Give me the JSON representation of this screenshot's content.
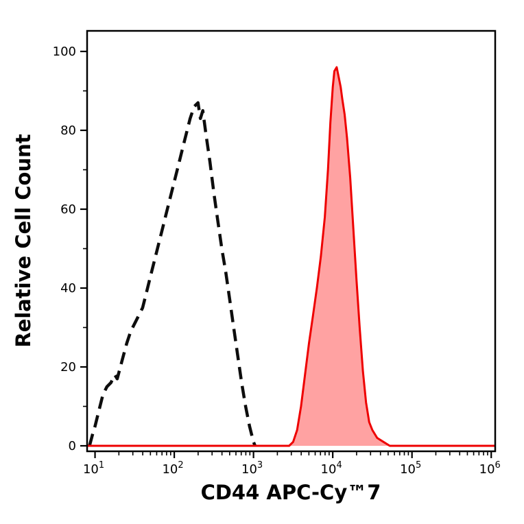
{
  "chart_data": {
    "type": "line",
    "subtype": "flow-cytometry-histogram",
    "title": "",
    "xlabel": "CD44 APC-Cy™7",
    "ylabel": "Relative Cell Count",
    "x_scale": "log10",
    "x_range_log": [
      0.9,
      6.05
    ],
    "x_tick_base": "10",
    "x_tick_exponents": [
      1,
      2,
      3,
      4,
      5,
      6
    ],
    "ylim": [
      0,
      100
    ],
    "y_ticks": [
      0,
      20,
      40,
      60,
      80,
      100
    ],
    "y_minor_ticks": [
      10,
      30,
      50,
      70,
      90
    ],
    "grid": false,
    "legend": "none",
    "frame_color": "#000000",
    "background_color": "#ffffff",
    "series": [
      {
        "name": "control-dashed",
        "style": "dashed",
        "color": "#0d0d0d",
        "stroke_width": 4.5,
        "dash": "18 10",
        "fill": "none",
        "peak": {
          "x_log": 2.3,
          "y": 87
        },
        "points": [
          [
            0.93,
            0
          ],
          [
            0.97,
            3
          ],
          [
            1.0,
            5
          ],
          [
            1.05,
            9
          ],
          [
            1.1,
            13
          ],
          [
            1.15,
            15
          ],
          [
            1.2,
            16
          ],
          [
            1.25,
            18
          ],
          [
            1.28,
            17
          ],
          [
            1.32,
            20
          ],
          [
            1.36,
            23
          ],
          [
            1.4,
            26
          ],
          [
            1.45,
            29
          ],
          [
            1.5,
            31
          ],
          [
            1.55,
            33
          ],
          [
            1.6,
            35
          ],
          [
            1.65,
            39
          ],
          [
            1.7,
            43
          ],
          [
            1.75,
            47
          ],
          [
            1.8,
            51
          ],
          [
            1.85,
            55
          ],
          [
            1.9,
            59
          ],
          [
            1.95,
            63
          ],
          [
            2.0,
            67
          ],
          [
            2.05,
            71
          ],
          [
            2.1,
            75
          ],
          [
            2.15,
            79
          ],
          [
            2.2,
            83
          ],
          [
            2.25,
            86
          ],
          [
            2.3,
            87
          ],
          [
            2.33,
            83
          ],
          [
            2.36,
            85
          ],
          [
            2.4,
            79
          ],
          [
            2.45,
            72
          ],
          [
            2.5,
            64
          ],
          [
            2.55,
            57
          ],
          [
            2.6,
            50
          ],
          [
            2.65,
            44
          ],
          [
            2.7,
            37
          ],
          [
            2.75,
            30
          ],
          [
            2.8,
            23
          ],
          [
            2.85,
            16
          ],
          [
            2.9,
            10
          ],
          [
            2.95,
            5
          ],
          [
            3.0,
            1
          ],
          [
            3.02,
            0
          ]
        ]
      },
      {
        "name": "sample-red",
        "style": "solid",
        "color": "#ee0000",
        "stroke_width": 3,
        "dash": "",
        "fill": "rgba(255,85,85,0.55)",
        "peak": {
          "x_log": 4.03,
          "y": 96
        },
        "points": [
          [
            0.9,
            0
          ],
          [
            3.45,
            0
          ],
          [
            3.5,
            1
          ],
          [
            3.55,
            4
          ],
          [
            3.6,
            10
          ],
          [
            3.65,
            18
          ],
          [
            3.7,
            26
          ],
          [
            3.75,
            33
          ],
          [
            3.8,
            40
          ],
          [
            3.85,
            48
          ],
          [
            3.9,
            58
          ],
          [
            3.94,
            70
          ],
          [
            3.97,
            82
          ],
          [
            4.0,
            91
          ],
          [
            4.02,
            95
          ],
          [
            4.05,
            96
          ],
          [
            4.08,
            93
          ],
          [
            4.1,
            91
          ],
          [
            4.12,
            88
          ],
          [
            4.15,
            84
          ],
          [
            4.18,
            78
          ],
          [
            4.22,
            68
          ],
          [
            4.26,
            55
          ],
          [
            4.3,
            42
          ],
          [
            4.34,
            30
          ],
          [
            4.38,
            19
          ],
          [
            4.42,
            11
          ],
          [
            4.46,
            6
          ],
          [
            4.5,
            4
          ],
          [
            4.56,
            2
          ],
          [
            4.64,
            1
          ],
          [
            4.72,
            0
          ],
          [
            6.05,
            0
          ]
        ]
      }
    ]
  }
}
